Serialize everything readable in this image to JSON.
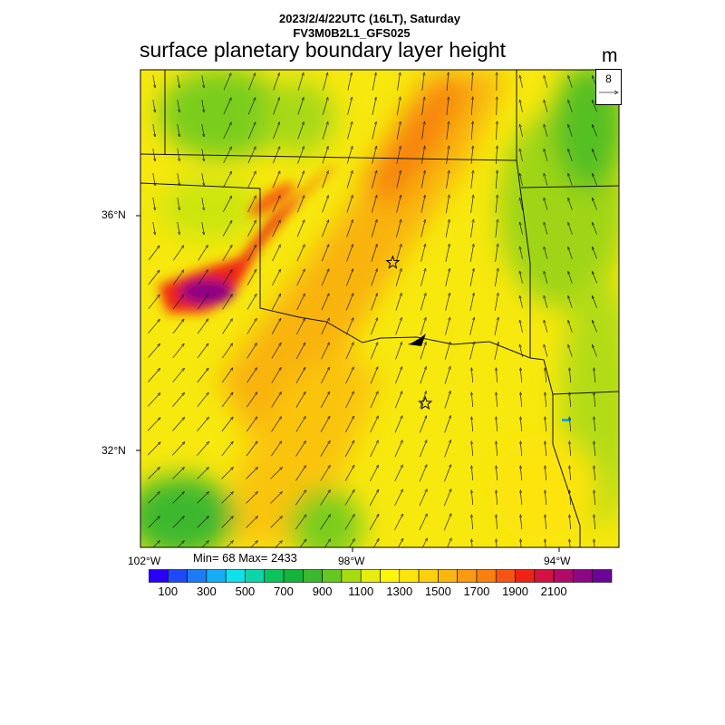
{
  "header": {
    "timestamp_line": "2023/2/4/22UTC (16LT), Saturday",
    "model_line": "FV3M0B2L1_GFS025",
    "title": "surface planetary boundary layer height",
    "units": "m"
  },
  "reference_vector": {
    "value": "8"
  },
  "axes": {
    "lat_labels": [
      {
        "text": "36°N",
        "value": 36
      },
      {
        "text": "32°N",
        "value": 32
      }
    ],
    "lon_labels": [
      {
        "text": "102°W",
        "value": -102
      },
      {
        "text": "98°W",
        "value": -98
      },
      {
        "text": "94°W",
        "value": -94
      }
    ]
  },
  "stats": {
    "text": "Min= 68 Max= 2433"
  },
  "colorbar": {
    "colors": [
      "#2b00fa",
      "#1d4af6",
      "#1b7df5",
      "#16aef5",
      "#0de2ea",
      "#0bd6a9",
      "#0cc45e",
      "#14b33a",
      "#3cb82f",
      "#66c81e",
      "#a7dc13",
      "#e7ee0f",
      "#fdf60c",
      "#fde40d",
      "#fcd00d",
      "#fcb50e",
      "#fb9a0e",
      "#fa7f0f",
      "#f75410",
      "#ed2414",
      "#d21240",
      "#b10a69",
      "#8d0684",
      "#6b0499"
    ],
    "labels": [
      "100",
      "300",
      "500",
      "700",
      "900",
      "1100",
      "1300",
      "1500",
      "1700",
      "1900",
      "2100"
    ]
  },
  "map_data": {
    "field": "surface planetary boundary layer height",
    "range": {
      "min": 68,
      "max": 2433
    },
    "markers": [
      {
        "type": "star-icon",
        "lon": -97.4,
        "lat": 35.2
      },
      {
        "type": "star-icon",
        "lon": -96.8,
        "lat": 32.8
      }
    ]
  }
}
